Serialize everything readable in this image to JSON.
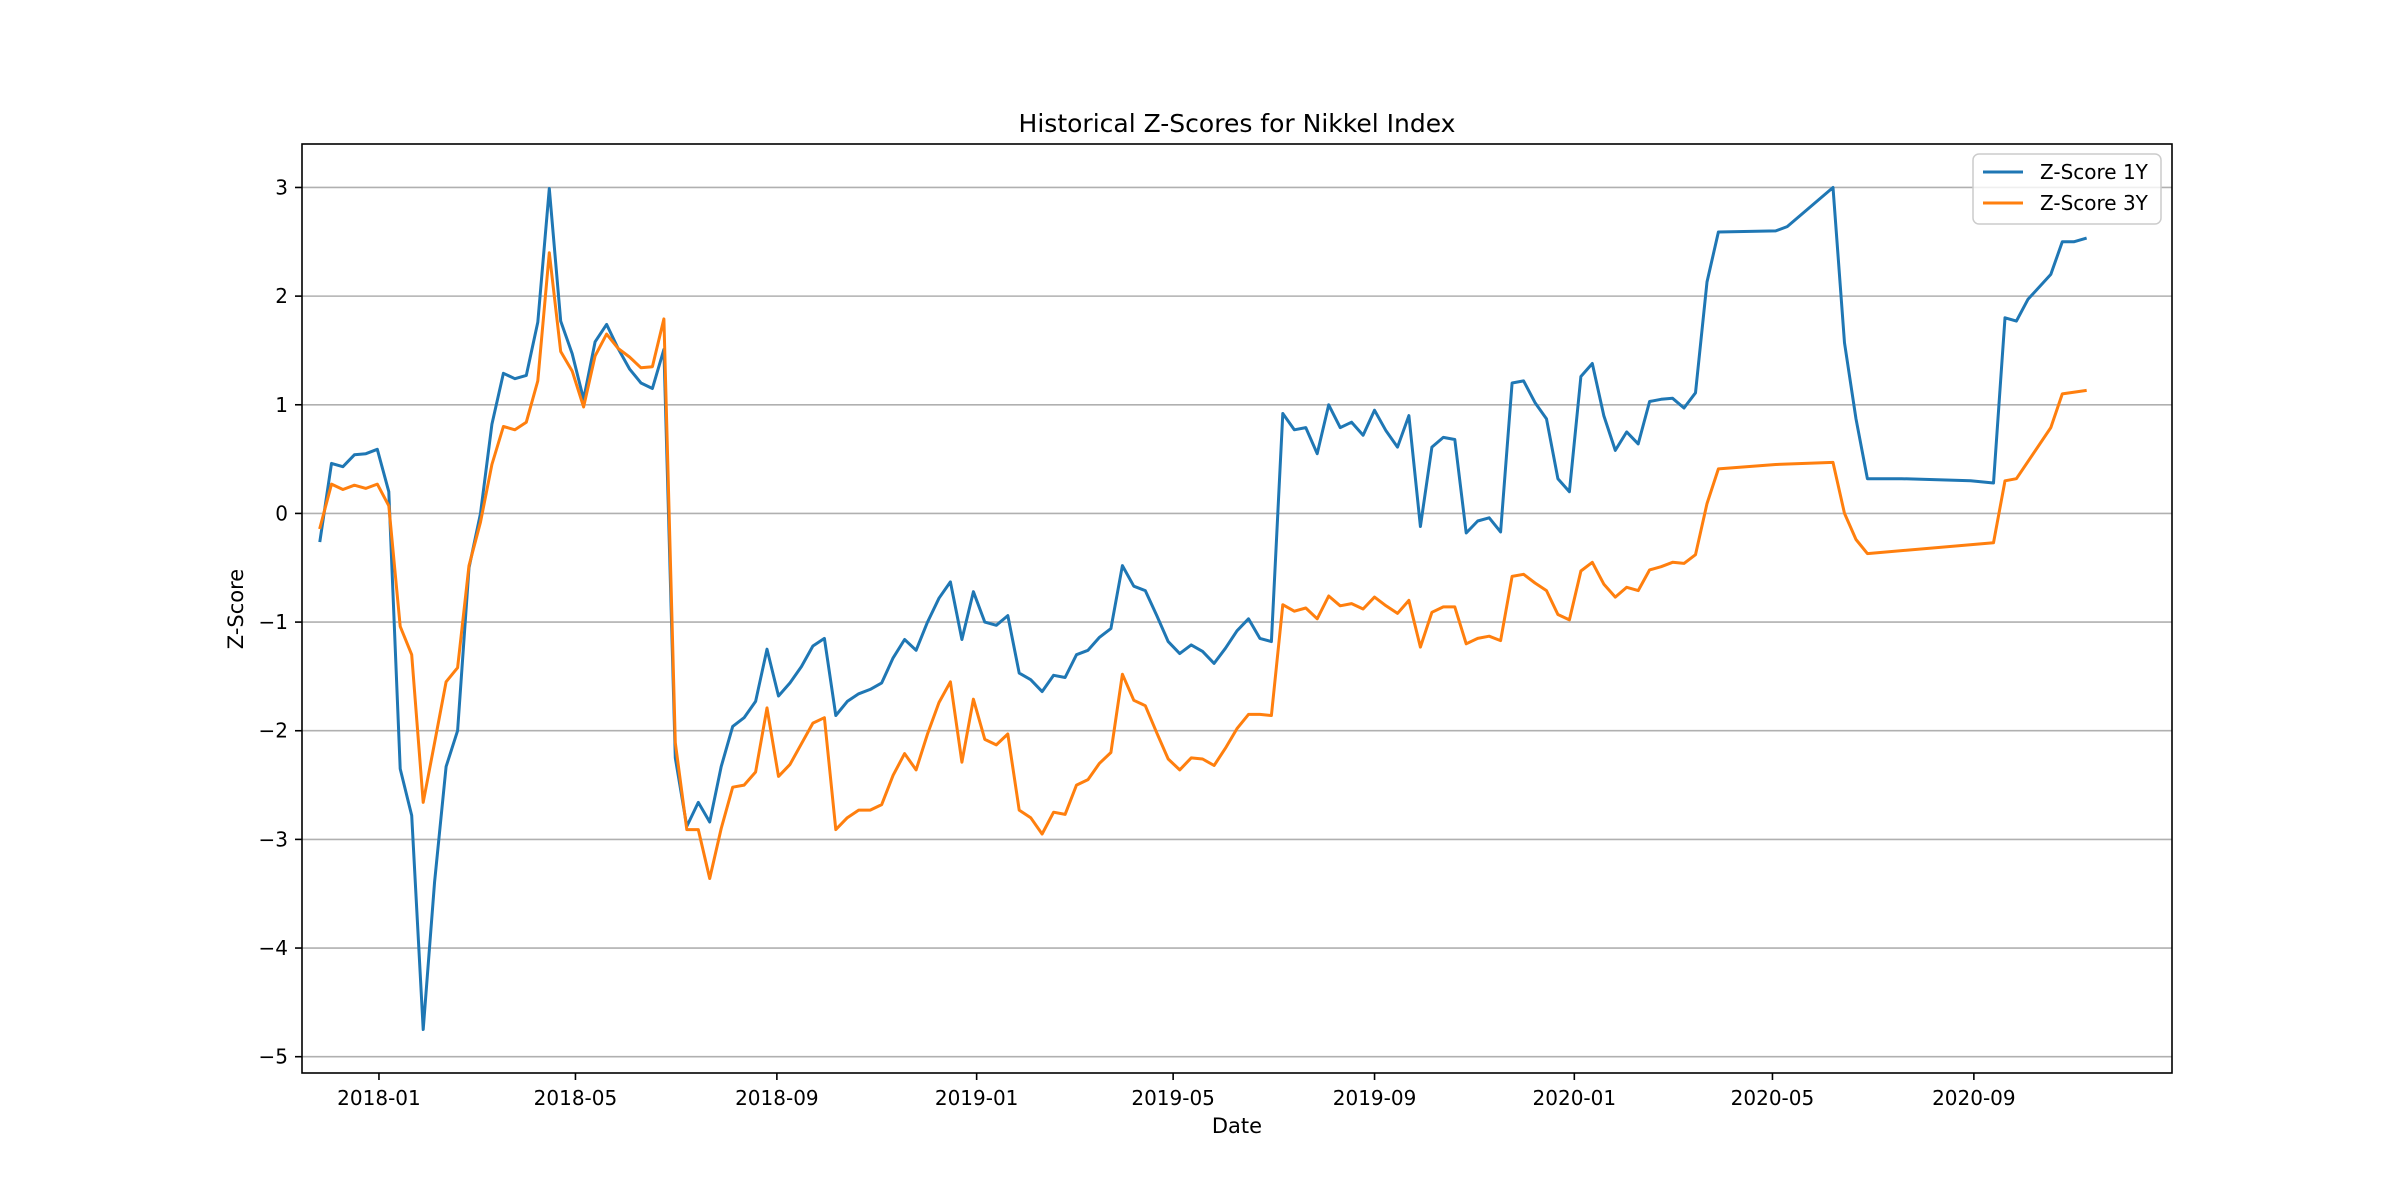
{
  "chart_data": {
    "type": "line",
    "title": "Historical Z-Scores for Nikkel Index",
    "xlabel": "Date",
    "ylabel": "Z-Score",
    "xlim": [
      "2017-11-15",
      "2020-12-31"
    ],
    "ylim": [
      -5.15,
      3.4
    ],
    "x_ticks": [
      "2018-01-01",
      "2018-05-01",
      "2018-09-01",
      "2019-01-01",
      "2019-05-01",
      "2019-09-01",
      "2020-01-01",
      "2020-05-01",
      "2020-09-01"
    ],
    "x_tick_labels": [
      "2018-01",
      "2018-05",
      "2018-09",
      "2019-01",
      "2019-05",
      "2019-09",
      "2020-01",
      "2020-05",
      "2020-09"
    ],
    "y_ticks": [
      3,
      2,
      1,
      0,
      -1,
      -2,
      -3,
      -4,
      -5
    ],
    "y_tick_labels": [
      "3",
      "2",
      "1",
      "0",
      "−1",
      "−2",
      "−3",
      "−4",
      "−5"
    ],
    "grid": "horizontal",
    "legend_position": "upper right",
    "series": [
      {
        "name": "Z-Score 1Y",
        "color": "#1f77b4",
        "points": [
          [
            "2017-11-26",
            -0.25
          ],
          [
            "2017-12-03",
            0.46
          ],
          [
            "2017-12-10",
            0.43
          ],
          [
            "2017-12-17",
            0.54
          ],
          [
            "2017-12-24",
            0.55
          ],
          [
            "2017-12-31",
            0.59
          ],
          [
            "2018-01-07",
            0.2
          ],
          [
            "2018-01-14",
            -2.35
          ],
          [
            "2018-01-21",
            -2.78
          ],
          [
            "2018-01-28",
            -4.75
          ],
          [
            "2018-02-04",
            -3.39
          ],
          [
            "2018-02-11",
            -2.33
          ],
          [
            "2018-02-18",
            -2.0
          ],
          [
            "2018-02-25",
            -0.5
          ],
          [
            "2018-03-04",
            0.0
          ],
          [
            "2018-03-11",
            0.82
          ],
          [
            "2018-03-18",
            1.29
          ],
          [
            "2018-03-25",
            1.24
          ],
          [
            "2018-04-01",
            1.27
          ],
          [
            "2018-04-08",
            1.76
          ],
          [
            "2018-04-15",
            2.99
          ],
          [
            "2018-04-22",
            1.77
          ],
          [
            "2018-04-29",
            1.47
          ],
          [
            "2018-05-06",
            1.05
          ],
          [
            "2018-05-13",
            1.58
          ],
          [
            "2018-05-20",
            1.74
          ],
          [
            "2018-05-27",
            1.52
          ],
          [
            "2018-06-03",
            1.33
          ],
          [
            "2018-06-10",
            1.2
          ],
          [
            "2018-06-17",
            1.15
          ],
          [
            "2018-06-24",
            1.51
          ],
          [
            "2018-07-01",
            -2.25
          ],
          [
            "2018-07-08",
            -2.88
          ],
          [
            "2018-07-15",
            -2.66
          ],
          [
            "2018-07-22",
            -2.84
          ],
          [
            "2018-07-29",
            -2.33
          ],
          [
            "2018-08-05",
            -1.96
          ],
          [
            "2018-08-12",
            -1.88
          ],
          [
            "2018-08-19",
            -1.73
          ],
          [
            "2018-08-26",
            -1.25
          ],
          [
            "2018-09-02",
            -1.68
          ],
          [
            "2018-09-09",
            -1.56
          ],
          [
            "2018-09-16",
            -1.41
          ],
          [
            "2018-09-23",
            -1.22
          ],
          [
            "2018-09-30",
            -1.15
          ],
          [
            "2018-10-07",
            -1.86
          ],
          [
            "2018-10-14",
            -1.73
          ],
          [
            "2018-10-21",
            -1.66
          ],
          [
            "2018-10-28",
            -1.62
          ],
          [
            "2018-11-04",
            -1.56
          ],
          [
            "2018-11-11",
            -1.33
          ],
          [
            "2018-11-18",
            -1.16
          ],
          [
            "2018-11-25",
            -1.26
          ],
          [
            "2018-12-02",
            -1.0
          ],
          [
            "2018-12-09",
            -0.78
          ],
          [
            "2018-12-16",
            -0.63
          ],
          [
            "2018-12-23",
            -1.16
          ],
          [
            "2018-12-30",
            -0.72
          ],
          [
            "2019-01-06",
            -1.0
          ],
          [
            "2019-01-13",
            -1.03
          ],
          [
            "2019-01-20",
            -0.94
          ],
          [
            "2019-01-27",
            -1.47
          ],
          [
            "2019-02-03",
            -1.53
          ],
          [
            "2019-02-10",
            -1.64
          ],
          [
            "2019-02-17",
            -1.49
          ],
          [
            "2019-02-24",
            -1.51
          ],
          [
            "2019-03-03",
            -1.3
          ],
          [
            "2019-03-10",
            -1.26
          ],
          [
            "2019-03-17",
            -1.14
          ],
          [
            "2019-03-24",
            -1.06
          ],
          [
            "2019-03-31",
            -0.48
          ],
          [
            "2019-04-07",
            -0.67
          ],
          [
            "2019-04-14",
            -0.71
          ],
          [
            "2019-04-21",
            -0.94
          ],
          [
            "2019-04-28",
            -1.18
          ],
          [
            "2019-05-05",
            -1.29
          ],
          [
            "2019-05-12",
            -1.21
          ],
          [
            "2019-05-19",
            -1.27
          ],
          [
            "2019-05-26",
            -1.38
          ],
          [
            "2019-06-02",
            -1.24
          ],
          [
            "2019-06-09",
            -1.08
          ],
          [
            "2019-06-16",
            -0.97
          ],
          [
            "2019-06-23",
            -1.15
          ],
          [
            "2019-06-30",
            -1.18
          ],
          [
            "2019-07-07",
            0.92
          ],
          [
            "2019-07-14",
            0.77
          ],
          [
            "2019-07-21",
            0.79
          ],
          [
            "2019-07-28",
            0.55
          ],
          [
            "2019-08-04",
            1.0
          ],
          [
            "2019-08-11",
            0.79
          ],
          [
            "2019-08-18",
            0.84
          ],
          [
            "2019-08-25",
            0.72
          ],
          [
            "2019-09-01",
            0.95
          ],
          [
            "2019-09-08",
            0.76
          ],
          [
            "2019-09-15",
            0.61
          ],
          [
            "2019-09-22",
            0.9
          ],
          [
            "2019-09-29",
            -0.12
          ],
          [
            "2019-10-06",
            0.61
          ],
          [
            "2019-10-13",
            0.7
          ],
          [
            "2019-10-20",
            0.68
          ],
          [
            "2019-10-27",
            -0.18
          ],
          [
            "2019-11-03",
            -0.07
          ],
          [
            "2019-11-10",
            -0.04
          ],
          [
            "2019-11-17",
            -0.17
          ],
          [
            "2019-11-24",
            1.2
          ],
          [
            "2019-12-01",
            1.22
          ],
          [
            "2019-12-08",
            1.02
          ],
          [
            "2019-12-15",
            0.87
          ],
          [
            "2019-12-22",
            0.32
          ],
          [
            "2019-12-29",
            0.2
          ],
          [
            "2020-01-05",
            1.26
          ],
          [
            "2020-01-12",
            1.38
          ],
          [
            "2020-01-19",
            0.9
          ],
          [
            "2020-01-26",
            0.58
          ],
          [
            "2020-02-02",
            0.75
          ],
          [
            "2020-02-09",
            0.64
          ],
          [
            "2020-02-16",
            1.03
          ],
          [
            "2020-02-23",
            1.05
          ],
          [
            "2020-03-01",
            1.06
          ],
          [
            "2020-03-08",
            0.97
          ],
          [
            "2020-03-15",
            1.11
          ],
          [
            "2020-03-22",
            2.13
          ],
          [
            "2020-03-29",
            2.59
          ],
          [
            "2020-05-03",
            2.6
          ],
          [
            "2020-05-10",
            2.64
          ],
          [
            "2020-06-07",
            3.0
          ],
          [
            "2020-06-14",
            1.57
          ],
          [
            "2020-06-21",
            0.87
          ],
          [
            "2020-06-28",
            0.32
          ],
          [
            "2020-07-19",
            0.32
          ],
          [
            "2020-08-30",
            0.3
          ],
          [
            "2020-09-13",
            0.28
          ],
          [
            "2020-09-20",
            1.8
          ],
          [
            "2020-09-27",
            1.77
          ],
          [
            "2020-10-04",
            1.97
          ],
          [
            "2020-10-18",
            2.2
          ],
          [
            "2020-10-25",
            2.5
          ],
          [
            "2020-11-01",
            2.5
          ],
          [
            "2020-11-08",
            2.53
          ]
        ]
      },
      {
        "name": "Z-Score 3Y",
        "color": "#ff7f0e",
        "points": [
          [
            "2017-11-26",
            -0.13
          ],
          [
            "2017-12-03",
            0.27
          ],
          [
            "2017-12-10",
            0.22
          ],
          [
            "2017-12-17",
            0.26
          ],
          [
            "2017-12-24",
            0.23
          ],
          [
            "2017-12-31",
            0.27
          ],
          [
            "2018-01-07",
            0.07
          ],
          [
            "2018-01-14",
            -1.04
          ],
          [
            "2018-01-21",
            -1.3
          ],
          [
            "2018-01-28",
            -2.66
          ],
          [
            "2018-02-04",
            -2.11
          ],
          [
            "2018-02-11",
            -1.55
          ],
          [
            "2018-02-18",
            -1.42
          ],
          [
            "2018-02-25",
            -0.48
          ],
          [
            "2018-03-04",
            -0.08
          ],
          [
            "2018-03-11",
            0.45
          ],
          [
            "2018-03-18",
            0.8
          ],
          [
            "2018-03-25",
            0.77
          ],
          [
            "2018-04-01",
            0.84
          ],
          [
            "2018-04-08",
            1.22
          ],
          [
            "2018-04-15",
            2.4
          ],
          [
            "2018-04-22",
            1.49
          ],
          [
            "2018-04-29",
            1.31
          ],
          [
            "2018-05-06",
            0.98
          ],
          [
            "2018-05-13",
            1.45
          ],
          [
            "2018-05-20",
            1.65
          ],
          [
            "2018-05-27",
            1.52
          ],
          [
            "2018-06-03",
            1.44
          ],
          [
            "2018-06-10",
            1.34
          ],
          [
            "2018-06-17",
            1.35
          ],
          [
            "2018-06-24",
            1.79
          ],
          [
            "2018-07-01",
            -2.11
          ],
          [
            "2018-07-08",
            -2.91
          ],
          [
            "2018-07-15",
            -2.91
          ],
          [
            "2018-07-22",
            -3.36
          ],
          [
            "2018-07-29",
            -2.9
          ],
          [
            "2018-08-05",
            -2.52
          ],
          [
            "2018-08-12",
            -2.5
          ],
          [
            "2018-08-19",
            -2.38
          ],
          [
            "2018-08-26",
            -1.79
          ],
          [
            "2018-09-02",
            -2.42
          ],
          [
            "2018-09-09",
            -2.31
          ],
          [
            "2018-09-16",
            -2.12
          ],
          [
            "2018-09-23",
            -1.93
          ],
          [
            "2018-09-30",
            -1.88
          ],
          [
            "2018-10-07",
            -2.91
          ],
          [
            "2018-10-14",
            -2.8
          ],
          [
            "2018-10-21",
            -2.73
          ],
          [
            "2018-10-28",
            -2.73
          ],
          [
            "2018-11-04",
            -2.68
          ],
          [
            "2018-11-11",
            -2.41
          ],
          [
            "2018-11-18",
            -2.21
          ],
          [
            "2018-11-25",
            -2.36
          ],
          [
            "2018-12-02",
            -2.03
          ],
          [
            "2018-12-09",
            -1.74
          ],
          [
            "2018-12-16",
            -1.55
          ],
          [
            "2018-12-23",
            -2.29
          ],
          [
            "2018-12-30",
            -1.71
          ],
          [
            "2019-01-06",
            -2.08
          ],
          [
            "2019-01-13",
            -2.13
          ],
          [
            "2019-01-20",
            -2.03
          ],
          [
            "2019-01-27",
            -2.73
          ],
          [
            "2019-02-03",
            -2.8
          ],
          [
            "2019-02-10",
            -2.95
          ],
          [
            "2019-02-17",
            -2.75
          ],
          [
            "2019-02-24",
            -2.77
          ],
          [
            "2019-03-03",
            -2.5
          ],
          [
            "2019-03-10",
            -2.45
          ],
          [
            "2019-03-17",
            -2.3
          ],
          [
            "2019-03-24",
            -2.2
          ],
          [
            "2019-03-31",
            -1.48
          ],
          [
            "2019-04-07",
            -1.72
          ],
          [
            "2019-04-14",
            -1.77
          ],
          [
            "2019-04-21",
            -2.02
          ],
          [
            "2019-04-28",
            -2.26
          ],
          [
            "2019-05-05",
            -2.36
          ],
          [
            "2019-05-12",
            -2.25
          ],
          [
            "2019-05-19",
            -2.26
          ],
          [
            "2019-05-26",
            -2.32
          ],
          [
            "2019-06-02",
            -2.16
          ],
          [
            "2019-06-09",
            -1.98
          ],
          [
            "2019-06-16",
            -1.85
          ],
          [
            "2019-06-23",
            -1.85
          ],
          [
            "2019-06-30",
            -1.86
          ],
          [
            "2019-07-07",
            -0.84
          ],
          [
            "2019-07-14",
            -0.9
          ],
          [
            "2019-07-21",
            -0.87
          ],
          [
            "2019-07-28",
            -0.97
          ],
          [
            "2019-08-04",
            -0.76
          ],
          [
            "2019-08-11",
            -0.85
          ],
          [
            "2019-08-18",
            -0.83
          ],
          [
            "2019-08-25",
            -0.88
          ],
          [
            "2019-09-01",
            -0.77
          ],
          [
            "2019-09-08",
            -0.85
          ],
          [
            "2019-09-15",
            -0.92
          ],
          [
            "2019-09-22",
            -0.8
          ],
          [
            "2019-09-29",
            -1.23
          ],
          [
            "2019-10-06",
            -0.91
          ],
          [
            "2019-10-13",
            -0.86
          ],
          [
            "2019-10-20",
            -0.86
          ],
          [
            "2019-10-27",
            -1.2
          ],
          [
            "2019-11-03",
            -1.15
          ],
          [
            "2019-11-10",
            -1.13
          ],
          [
            "2019-11-17",
            -1.17
          ],
          [
            "2019-11-24",
            -0.58
          ],
          [
            "2019-12-01",
            -0.56
          ],
          [
            "2019-12-08",
            -0.64
          ],
          [
            "2019-12-15",
            -0.71
          ],
          [
            "2019-12-22",
            -0.93
          ],
          [
            "2019-12-29",
            -0.98
          ],
          [
            "2020-01-05",
            -0.53
          ],
          [
            "2020-01-12",
            -0.45
          ],
          [
            "2020-01-19",
            -0.65
          ],
          [
            "2020-01-26",
            -0.77
          ],
          [
            "2020-02-02",
            -0.68
          ],
          [
            "2020-02-09",
            -0.71
          ],
          [
            "2020-02-16",
            -0.52
          ],
          [
            "2020-02-23",
            -0.49
          ],
          [
            "2020-03-01",
            -0.45
          ],
          [
            "2020-03-08",
            -0.46
          ],
          [
            "2020-03-15",
            -0.38
          ],
          [
            "2020-03-22",
            0.09
          ],
          [
            "2020-03-29",
            0.41
          ],
          [
            "2020-05-03",
            0.45
          ],
          [
            "2020-06-07",
            0.47
          ],
          [
            "2020-06-14",
            0.0
          ],
          [
            "2020-06-21",
            -0.24
          ],
          [
            "2020-06-28",
            -0.37
          ],
          [
            "2020-09-13",
            -0.27
          ],
          [
            "2020-09-20",
            0.3
          ],
          [
            "2020-09-27",
            0.32
          ],
          [
            "2020-10-18",
            0.79
          ],
          [
            "2020-10-25",
            1.1
          ],
          [
            "2020-11-08",
            1.13
          ]
        ]
      }
    ]
  }
}
